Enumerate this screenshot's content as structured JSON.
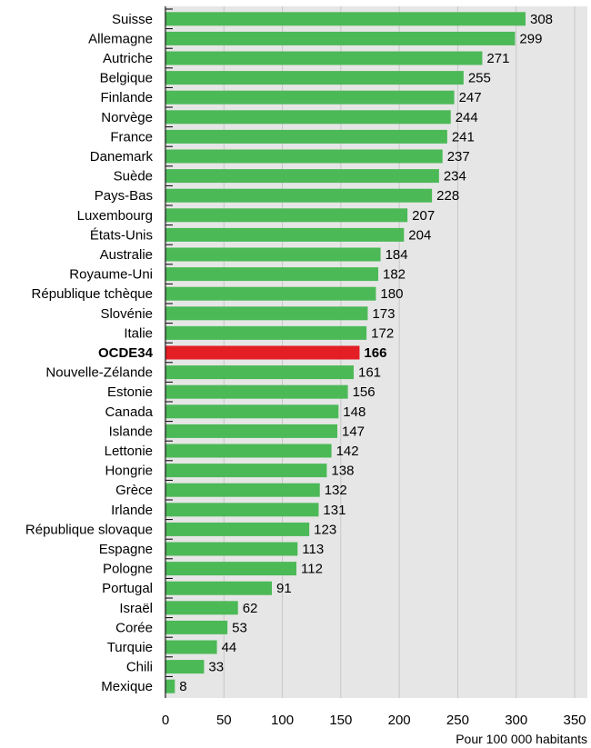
{
  "chart_data": {
    "type": "bar",
    "orientation": "horizontal",
    "categories": [
      "Suisse",
      "Allemagne",
      "Autriche",
      "Belgique",
      "Finlande",
      "Norvège",
      "France",
      "Danemark",
      "Suède",
      "Pays-Bas",
      "Luxembourg",
      "États-Unis",
      "Australie",
      "Royaume-Uni",
      "République tchèque",
      "Slovénie",
      "Italie",
      "OCDE34",
      "Nouvelle-Zélande",
      "Estonie",
      "Canada",
      "Islande",
      "Lettonie",
      "Hongrie",
      "Grèce",
      "Irlande",
      "République slovaque",
      "Espagne",
      "Pologne",
      "Portugal",
      "Israël",
      "Corée",
      "Turquie",
      "Chili",
      "Mexique"
    ],
    "values": [
      308,
      299,
      271,
      255,
      247,
      244,
      241,
      237,
      234,
      228,
      207,
      204,
      184,
      182,
      180,
      173,
      172,
      166,
      161,
      156,
      148,
      147,
      142,
      138,
      132,
      131,
      123,
      113,
      112,
      91,
      62,
      53,
      44,
      33,
      8
    ],
    "highlight": "OCDE34",
    "xlabel": "Pour 100 000 habitants",
    "xlim": [
      0,
      350
    ],
    "xticks": [
      0,
      50,
      100,
      150,
      200,
      250,
      300,
      350
    ],
    "grid": true,
    "colors": {
      "bar": "#4cb957",
      "highlight": "#e31e24",
      "grid": "#c8c8c8",
      "background": "#e6e6e6"
    }
  }
}
